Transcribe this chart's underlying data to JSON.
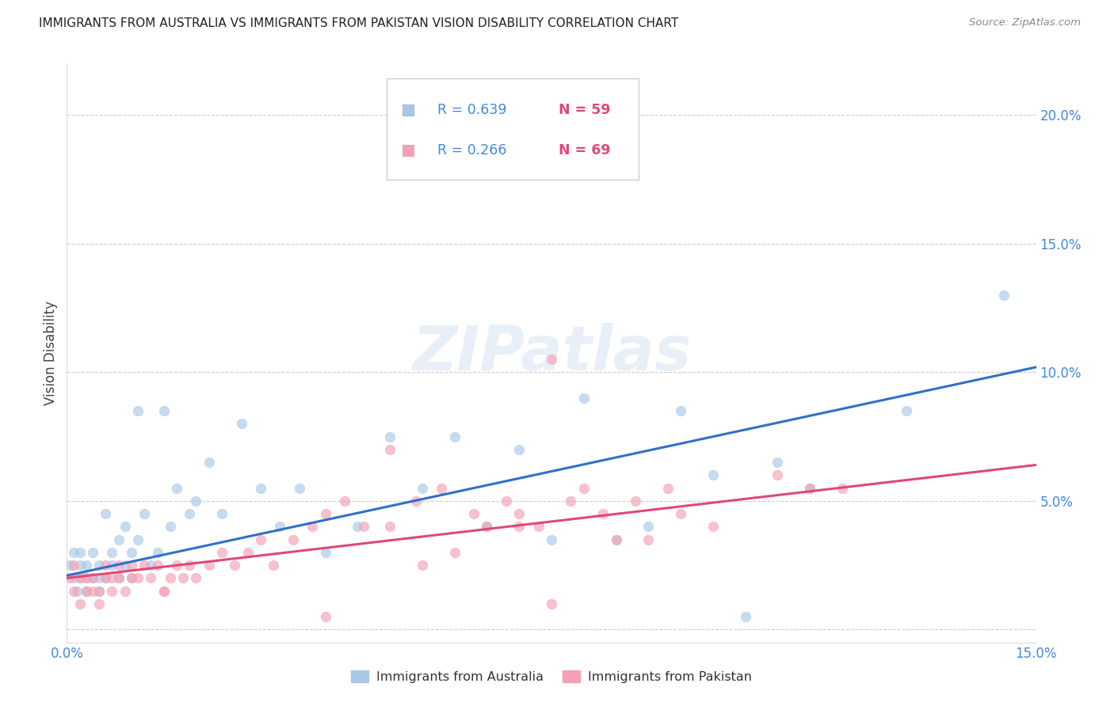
{
  "title": "IMMIGRANTS FROM AUSTRALIA VS IMMIGRANTS FROM PAKISTAN VISION DISABILITY CORRELATION CHART",
  "source": "Source: ZipAtlas.com",
  "ylabel": "Vision Disability",
  "xlim": [
    0.0,
    0.15
  ],
  "ylim": [
    -0.005,
    0.22
  ],
  "xticks": [
    0.0,
    0.03,
    0.06,
    0.09,
    0.12,
    0.15
  ],
  "yticks_right": [
    0.05,
    0.1,
    0.15,
    0.2
  ],
  "xticklabels": [
    "0.0%",
    "",
    "",
    "",
    "",
    "15.0%"
  ],
  "yticklabels_right": [
    "5.0%",
    "10.0%",
    "15.0%",
    "20.0%"
  ],
  "australia_R": 0.639,
  "australia_N": 59,
  "pakistan_R": 0.266,
  "pakistan_N": 69,
  "australia_color": "#a8c8e8",
  "pakistan_color": "#f5a0b5",
  "australia_line_color": "#3070c8",
  "pakistan_line_color": "#e04878",
  "legend_R_color": "#4488dd",
  "legend_N_color": "#e04878",
  "background_color": "#ffffff",
  "grid_color": "#cccccc",
  "title_color": "#222222",
  "source_color": "#888888",
  "ylabel_color": "#444444",
  "watermark": "ZIPatlas",
  "australia_trendline": [
    [
      0.0,
      0.021
    ],
    [
      0.15,
      0.102
    ]
  ],
  "pakistan_trendline": [
    [
      0.0,
      0.02
    ],
    [
      0.15,
      0.064
    ]
  ],
  "australia_scatter_x": [
    0.0005,
    0.001,
    0.001,
    0.0015,
    0.002,
    0.002,
    0.002,
    0.003,
    0.003,
    0.003,
    0.004,
    0.004,
    0.005,
    0.005,
    0.005,
    0.006,
    0.006,
    0.007,
    0.007,
    0.008,
    0.008,
    0.009,
    0.009,
    0.01,
    0.01,
    0.011,
    0.011,
    0.012,
    0.013,
    0.014,
    0.015,
    0.016,
    0.017,
    0.019,
    0.02,
    0.022,
    0.024,
    0.027,
    0.03,
    0.033,
    0.036,
    0.04,
    0.045,
    0.05,
    0.055,
    0.06,
    0.065,
    0.07,
    0.075,
    0.08,
    0.085,
    0.09,
    0.095,
    0.1,
    0.105,
    0.11,
    0.115,
    0.13,
    0.145
  ],
  "australia_scatter_y": [
    0.025,
    0.02,
    0.03,
    0.015,
    0.02,
    0.025,
    0.03,
    0.015,
    0.02,
    0.025,
    0.02,
    0.03,
    0.015,
    0.02,
    0.025,
    0.02,
    0.045,
    0.025,
    0.03,
    0.02,
    0.035,
    0.025,
    0.04,
    0.02,
    0.03,
    0.035,
    0.085,
    0.045,
    0.025,
    0.03,
    0.085,
    0.04,
    0.055,
    0.045,
    0.05,
    0.065,
    0.045,
    0.08,
    0.055,
    0.04,
    0.055,
    0.03,
    0.04,
    0.075,
    0.055,
    0.075,
    0.04,
    0.07,
    0.035,
    0.09,
    0.035,
    0.04,
    0.085,
    0.06,
    0.005,
    0.065,
    0.055,
    0.085,
    0.13
  ],
  "pakistan_scatter_x": [
    0.0005,
    0.001,
    0.001,
    0.002,
    0.002,
    0.003,
    0.003,
    0.004,
    0.004,
    0.005,
    0.005,
    0.006,
    0.006,
    0.007,
    0.007,
    0.008,
    0.008,
    0.009,
    0.01,
    0.01,
    0.011,
    0.012,
    0.013,
    0.014,
    0.015,
    0.016,
    0.017,
    0.018,
    0.019,
    0.02,
    0.022,
    0.024,
    0.026,
    0.028,
    0.03,
    0.032,
    0.035,
    0.038,
    0.04,
    0.043,
    0.046,
    0.05,
    0.054,
    0.058,
    0.063,
    0.065,
    0.068,
    0.07,
    0.073,
    0.075,
    0.078,
    0.083,
    0.088,
    0.093,
    0.055,
    0.06,
    0.07,
    0.04,
    0.08,
    0.085,
    0.09,
    0.095,
    0.1,
    0.11,
    0.115,
    0.12,
    0.05,
    0.015,
    0.075
  ],
  "pakistan_scatter_y": [
    0.02,
    0.015,
    0.025,
    0.01,
    0.02,
    0.015,
    0.02,
    0.015,
    0.02,
    0.01,
    0.015,
    0.02,
    0.025,
    0.015,
    0.02,
    0.02,
    0.025,
    0.015,
    0.02,
    0.025,
    0.02,
    0.025,
    0.02,
    0.025,
    0.015,
    0.02,
    0.025,
    0.02,
    0.025,
    0.02,
    0.025,
    0.03,
    0.025,
    0.03,
    0.035,
    0.025,
    0.035,
    0.04,
    0.045,
    0.05,
    0.04,
    0.04,
    0.05,
    0.055,
    0.045,
    0.04,
    0.05,
    0.045,
    0.04,
    0.105,
    0.05,
    0.045,
    0.05,
    0.055,
    0.025,
    0.03,
    0.04,
    0.005,
    0.055,
    0.035,
    0.035,
    0.045,
    0.04,
    0.06,
    0.055,
    0.055,
    0.07,
    0.015,
    0.01
  ]
}
